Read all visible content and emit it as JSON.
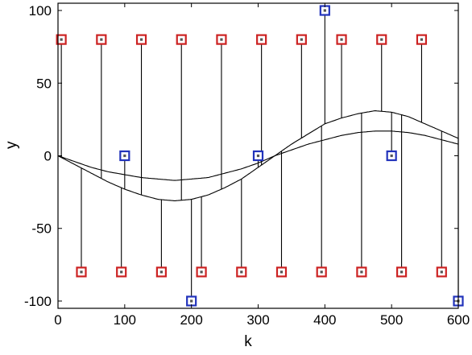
{
  "chart_data": {
    "type": "scatter",
    "title": "",
    "xlabel": "k",
    "ylabel": "y",
    "xlim": [
      0,
      600
    ],
    "ylim": [
      -105,
      105
    ],
    "xticks": [
      0,
      100,
      200,
      300,
      400,
      500,
      600
    ],
    "yticks": [
      100,
      50,
      0,
      -50,
      -100
    ],
    "grid": false,
    "colors": {
      "red_marker": "#cc2222",
      "blue_marker": "#2233bb",
      "stem": "#000000",
      "curve": "#000000"
    },
    "red_markers": {
      "y_plus_80_x": [
        5,
        65,
        125,
        185,
        245,
        305,
        365,
        425,
        485,
        545
      ],
      "y_minus_80_x": [
        35,
        95,
        155,
        215,
        275,
        335,
        395,
        455,
        515,
        575
      ]
    },
    "blue_markers": {
      "x": [
        100,
        200,
        300,
        400,
        500,
        600
      ],
      "y": [
        0,
        -100,
        0,
        100,
        0,
        -100
      ]
    },
    "series": [
      {
        "x": [
          0,
          25,
          50,
          75,
          100,
          125,
          150,
          175,
          200,
          225,
          250,
          275,
          300,
          325,
          350,
          375,
          400,
          425,
          450,
          475,
          500,
          525,
          550,
          575,
          600
        ],
        "y": [
          0,
          -6,
          -12,
          -18,
          -23,
          -27,
          -30,
          -31,
          -30,
          -27,
          -22,
          -16,
          -8,
          0,
          8,
          15,
          22,
          26,
          29,
          31,
          30,
          27,
          22,
          17,
          12
        ]
      },
      {
        "x": [
          0,
          25,
          50,
          75,
          100,
          125,
          150,
          175,
          200,
          225,
          250,
          275,
          300,
          325,
          350,
          375,
          400,
          425,
          450,
          475,
          500,
          525,
          550,
          575,
          600
        ],
        "y": [
          0,
          -4,
          -8,
          -11,
          -13,
          -15,
          -16,
          -17,
          -16,
          -15,
          -12,
          -9,
          -5,
          0,
          4,
          8,
          11,
          14,
          16,
          17,
          17,
          16,
          14,
          11,
          8
        ]
      }
    ]
  }
}
